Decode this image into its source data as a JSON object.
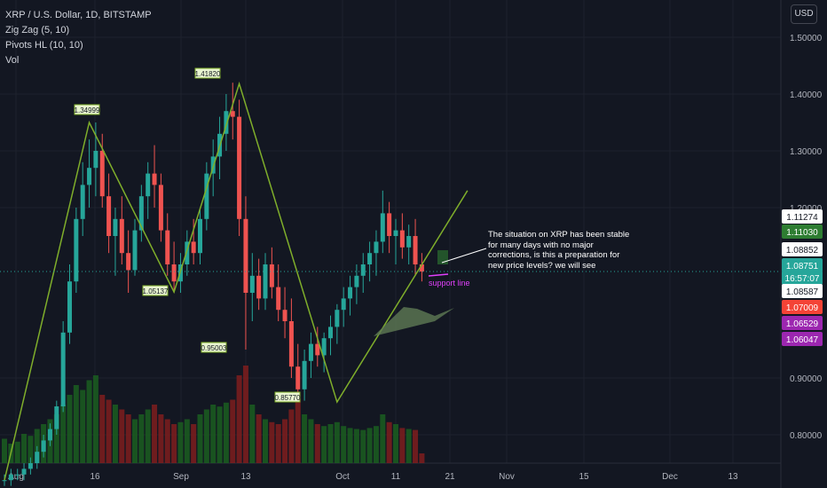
{
  "header": {
    "symbol_title": "XRP / U.S. Dollar, 1D, BITSTAMP",
    "indicators": [
      "Zig Zag (5, 10)",
      "Pivots HL (10, 10)",
      "Vol"
    ],
    "currency_button": "USD"
  },
  "annotation": {
    "note": "The situation on XRP has been stable for many days with no major corrections, is this a preparation for new price levels? we will see",
    "support_label": "support line"
  },
  "colors": {
    "background": "#131722",
    "up": "#26a69a",
    "down": "#ef5350",
    "zigzag": "#7fae2b",
    "support": "#e040fb"
  },
  "chart_data": {
    "type": "candlestick",
    "title": "XRP / U.S. Dollar, 1D, BITSTAMP",
    "ylim": [
      0.75,
      1.55
    ],
    "y_ticks": [
      "1.50000",
      "1.40000",
      "1.30000",
      "1.20000",
      "0.90000",
      "0.80000"
    ],
    "x_ticks": [
      "Aug",
      "16",
      "Sep",
      "13",
      "Oct",
      "11",
      "21",
      "Nov",
      "15",
      "Dec",
      "13"
    ],
    "zigzag_points": [
      {
        "date": "2021-08-01",
        "value": 0.72
      },
      {
        "date": "2021-08-14",
        "value": 1.34999
      },
      {
        "date": "2021-08-27",
        "value": 1.05137
      },
      {
        "date": "2021-09-06",
        "value": 1.4182
      },
      {
        "date": "2021-09-21",
        "value": 0.8577
      },
      {
        "date": "2021-10-11",
        "value": 1.23
      }
    ],
    "pivot_labels": [
      "1.34999",
      "1.05137",
      "1.41820",
      "0.95003",
      "0.85770"
    ],
    "price_scale_labels": [
      {
        "text": "1.11274",
        "style": "white"
      },
      {
        "text": "1.11030",
        "style": "green"
      },
      {
        "text": "1.08852",
        "style": "white"
      },
      {
        "text": "1.08751",
        "style": "teal"
      },
      {
        "text": "16:57:07",
        "style": "teal"
      },
      {
        "text": "1.08587",
        "style": "white"
      },
      {
        "text": "1.07009",
        "style": "red"
      },
      {
        "text": "1.06529",
        "style": "purple"
      },
      {
        "text": "1.06047",
        "style": "purple"
      }
    ],
    "last_price": 1.08751,
    "candles": [
      [
        0.72,
        0.73,
        0.71,
        0.72
      ],
      [
        0.72,
        0.74,
        0.71,
        0.73
      ],
      [
        0.73,
        0.74,
        0.72,
        0.73
      ],
      [
        0.73,
        0.75,
        0.72,
        0.74
      ],
      [
        0.74,
        0.76,
        0.73,
        0.75
      ],
      [
        0.75,
        0.78,
        0.74,
        0.77
      ],
      [
        0.77,
        0.8,
        0.76,
        0.79
      ],
      [
        0.79,
        0.82,
        0.78,
        0.81
      ],
      [
        0.81,
        0.86,
        0.8,
        0.85
      ],
      [
        0.85,
        1.0,
        0.84,
        0.98
      ],
      [
        0.98,
        1.1,
        0.96,
        1.07
      ],
      [
        1.07,
        1.2,
        1.05,
        1.18
      ],
      [
        1.18,
        1.28,
        1.15,
        1.24
      ],
      [
        1.24,
        1.32,
        1.2,
        1.27
      ],
      [
        1.27,
        1.35,
        1.22,
        1.3
      ],
      [
        1.3,
        1.33,
        1.2,
        1.22
      ],
      [
        1.22,
        1.26,
        1.12,
        1.15
      ],
      [
        1.15,
        1.2,
        1.08,
        1.18
      ],
      [
        1.18,
        1.22,
        1.1,
        1.12
      ],
      [
        1.12,
        1.16,
        1.05,
        1.09
      ],
      [
        1.09,
        1.18,
        1.08,
        1.16
      ],
      [
        1.16,
        1.24,
        1.14,
        1.22
      ],
      [
        1.22,
        1.28,
        1.18,
        1.26
      ],
      [
        1.26,
        1.31,
        1.2,
        1.24
      ],
      [
        1.24,
        1.26,
        1.14,
        1.16
      ],
      [
        1.16,
        1.19,
        1.08,
        1.1
      ],
      [
        1.1,
        1.14,
        1.05,
        1.07
      ],
      [
        1.07,
        1.12,
        1.05,
        1.1
      ],
      [
        1.1,
        1.16,
        1.08,
        1.14
      ],
      [
        1.14,
        1.18,
        1.1,
        1.12
      ],
      [
        1.12,
        1.2,
        1.1,
        1.18
      ],
      [
        1.18,
        1.28,
        1.16,
        1.26
      ],
      [
        1.26,
        1.32,
        1.22,
        1.29
      ],
      [
        1.29,
        1.36,
        1.25,
        1.33
      ],
      [
        1.33,
        1.4,
        1.3,
        1.37
      ],
      [
        1.37,
        1.42,
        1.32,
        1.36
      ],
      [
        1.36,
        1.39,
        1.15,
        1.18
      ],
      [
        1.18,
        1.22,
        0.95,
        1.05
      ],
      [
        1.05,
        1.12,
        1.0,
        1.08
      ],
      [
        1.08,
        1.11,
        1.02,
        1.04
      ],
      [
        1.04,
        1.12,
        1.02,
        1.1
      ],
      [
        1.1,
        1.13,
        1.04,
        1.06
      ],
      [
        1.06,
        1.1,
        1.0,
        1.02
      ],
      [
        1.02,
        1.06,
        0.97,
        1.0
      ],
      [
        1.0,
        1.04,
        0.9,
        0.92
      ],
      [
        0.92,
        0.96,
        0.86,
        0.88
      ],
      [
        0.88,
        0.95,
        0.86,
        0.93
      ],
      [
        0.93,
        0.98,
        0.9,
        0.96
      ],
      [
        0.96,
        0.99,
        0.92,
        0.94
      ],
      [
        0.94,
        0.98,
        0.91,
        0.97
      ],
      [
        0.97,
        1.01,
        0.94,
        0.99
      ],
      [
        0.99,
        1.03,
        0.96,
        1.02
      ],
      [
        1.02,
        1.06,
        0.99,
        1.04
      ],
      [
        1.04,
        1.08,
        1.01,
        1.06
      ],
      [
        1.06,
        1.1,
        1.03,
        1.08
      ],
      [
        1.08,
        1.12,
        1.05,
        1.1
      ],
      [
        1.1,
        1.14,
        1.07,
        1.12
      ],
      [
        1.12,
        1.16,
        1.08,
        1.14
      ],
      [
        1.14,
        1.23,
        1.12,
        1.19
      ],
      [
        1.19,
        1.21,
        1.12,
        1.15
      ],
      [
        1.15,
        1.18,
        1.1,
        1.16
      ],
      [
        1.16,
        1.19,
        1.11,
        1.13
      ],
      [
        1.13,
        1.17,
        1.1,
        1.15
      ],
      [
        1.15,
        1.18,
        1.08,
        1.1
      ],
      [
        1.1,
        1.12,
        1.07,
        1.0875
      ]
    ],
    "volume": [
      0.25,
      0.2,
      0.22,
      0.3,
      0.28,
      0.35,
      0.4,
      0.45,
      0.5,
      0.6,
      0.7,
      0.8,
      0.75,
      0.85,
      0.9,
      0.7,
      0.65,
      0.6,
      0.55,
      0.5,
      0.45,
      0.5,
      0.55,
      0.6,
      0.5,
      0.45,
      0.4,
      0.42,
      0.45,
      0.4,
      0.5,
      0.55,
      0.6,
      0.58,
      0.62,
      0.65,
      0.9,
      1.0,
      0.6,
      0.5,
      0.45,
      0.42,
      0.4,
      0.45,
      0.55,
      0.65,
      0.5,
      0.45,
      0.4,
      0.38,
      0.4,
      0.42,
      0.38,
      0.36,
      0.35,
      0.34,
      0.36,
      0.38,
      0.5,
      0.42,
      0.4,
      0.36,
      0.35,
      0.34,
      0.1
    ]
  }
}
